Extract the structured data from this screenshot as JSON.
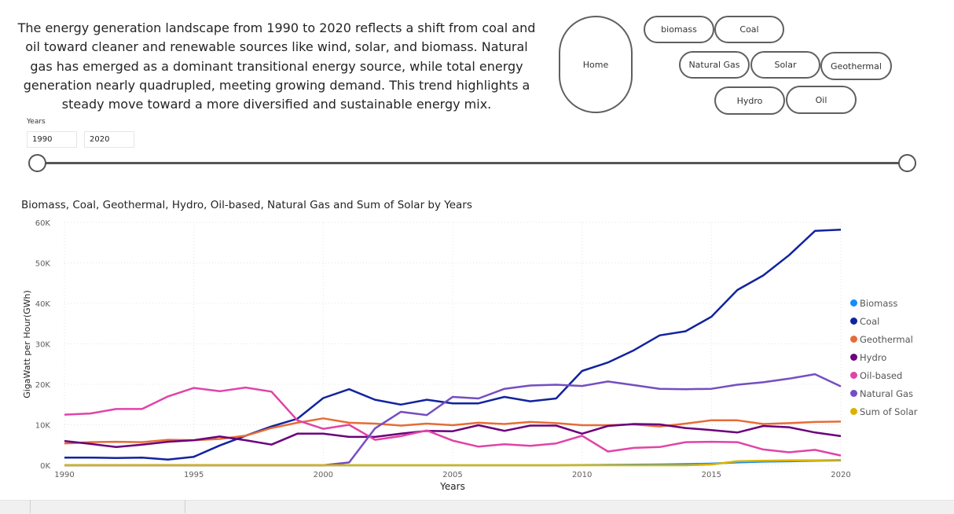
{
  "summary": "The energy generation landscape from 1990 to 2020 reflects a shift from coal and oil toward cleaner and renewable sources like wind, solar, and biomass. Natural gas has emerged as a dominant transitional energy source, while total energy generation nearly quadrupled, meeting growing demand. This trend highlights a steady move toward a more diversified and sustainable energy mix.",
  "nav": {
    "home": "Home",
    "biomass": "biomass",
    "coal": "Coal",
    "natural_gas": "Natural Gas",
    "solar": "Solar",
    "geothermal": "Geothermal",
    "hydro": "Hydro",
    "oil": "Oil"
  },
  "slicer": {
    "label": "Years",
    "start": "1990",
    "end": "2020"
  },
  "chart_data": {
    "type": "line",
    "title": "Biomass, Coal, Geothermal, Hydro, Oil-based, Natural Gas and Sum of Solar by Years",
    "xlabel": "Years",
    "ylabel": "GigaWatt per Hour(GWh)",
    "ylim": [
      0,
      60000
    ],
    "xlim": [
      1990,
      2020
    ],
    "yticks": [
      0,
      10000,
      20000,
      30000,
      40000,
      50000,
      60000
    ],
    "ytick_labels": [
      "0K",
      "10K",
      "20K",
      "30K",
      "40K",
      "50K",
      "60K"
    ],
    "xticks": [
      1990,
      1995,
      2000,
      2005,
      2010,
      2015,
      2020
    ],
    "x": [
      1990,
      1991,
      1992,
      1993,
      1994,
      1995,
      1996,
      1997,
      1998,
      1999,
      2000,
      2001,
      2002,
      2003,
      2004,
      2005,
      2006,
      2007,
      2008,
      2009,
      2010,
      2011,
      2012,
      2013,
      2014,
      2015,
      2016,
      2017,
      2018,
      2019,
      2020
    ],
    "series": [
      {
        "name": "Biomass",
        "color": "#118DFF",
        "values": [
          0,
          0,
          0,
          0,
          0,
          0,
          0,
          0,
          0,
          0,
          0,
          0,
          0,
          0,
          0,
          0,
          0,
          0,
          0,
          0,
          50,
          100,
          150,
          200,
          300,
          400,
          700,
          900,
          1000,
          1100,
          1200
        ]
      },
      {
        "name": "Coal",
        "color": "#12239E",
        "values": [
          1900,
          1900,
          1800,
          1900,
          1400,
          2100,
          4900,
          7300,
          9600,
          11500,
          16600,
          18800,
          16200,
          15000,
          16200,
          15300,
          15300,
          16900,
          15800,
          16500,
          23300,
          25400,
          28400,
          32100,
          33100,
          36700,
          43300,
          46900,
          51900,
          57900,
          58200
        ]
      },
      {
        "name": "Geothermal",
        "color": "#E66C37",
        "values": [
          5400,
          5700,
          5800,
          5700,
          6300,
          6200,
          6500,
          7300,
          9200,
          10500,
          11600,
          10500,
          10300,
          9800,
          10300,
          9900,
          10500,
          10200,
          10700,
          10400,
          9900,
          9900,
          10100,
          9600,
          10300,
          11100,
          11100,
          10200,
          10400,
          10700,
          10800
        ]
      },
      {
        "name": "Hydro",
        "color": "#6B007B",
        "values": [
          6000,
          5300,
          4500,
          5100,
          5800,
          6200,
          7100,
          6200,
          5100,
          7800,
          7800,
          7000,
          7000,
          7800,
          8500,
          8400,
          9900,
          8500,
          9800,
          9800,
          7800,
          9700,
          10200,
          10100,
          9200,
          8700,
          8100,
          9700,
          9400,
          8100,
          7200
        ]
      },
      {
        "name": "Oil-based",
        "color": "#E044A7",
        "values": [
          12500,
          12800,
          13900,
          13900,
          17000,
          19100,
          18300,
          19200,
          18200,
          11100,
          9000,
          10000,
          6300,
          7200,
          8600,
          6100,
          4600,
          5200,
          4800,
          5400,
          7300,
          3400,
          4300,
          4500,
          5700,
          5800,
          5700,
          3900,
          3200,
          3800,
          2400
        ]
      },
      {
        "name": "Natural Gas",
        "color": "#744EC2",
        "values": [
          0,
          0,
          0,
          0,
          0,
          0,
          0,
          0,
          0,
          0,
          0,
          700,
          9100,
          13200,
          12400,
          16900,
          16500,
          18900,
          19700,
          19900,
          19600,
          20700,
          19800,
          18900,
          18800,
          18900,
          19900,
          20500,
          21400,
          22500,
          19500
        ]
      },
      {
        "name": "Sum of Solar",
        "color": "#D9B300",
        "values": [
          0,
          0,
          0,
          0,
          0,
          0,
          0,
          0,
          0,
          0,
          0,
          0,
          0,
          0,
          0,
          0,
          0,
          0,
          0,
          0,
          0,
          0,
          0,
          0,
          0,
          200,
          1000,
          1100,
          1200,
          1200,
          1300
        ]
      }
    ]
  }
}
